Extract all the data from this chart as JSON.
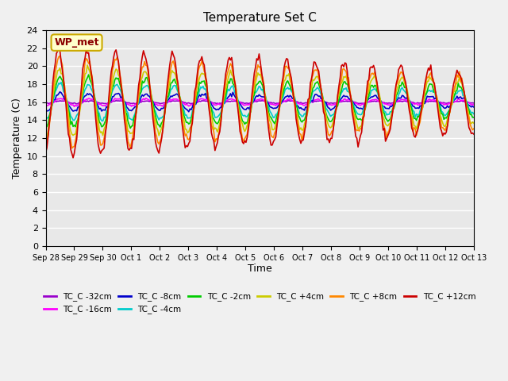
{
  "title": "Temperature Set C",
  "xlabel": "Time",
  "ylabel": "Temperature (C)",
  "ylim": [
    0,
    24
  ],
  "yticks": [
    0,
    2,
    4,
    6,
    8,
    10,
    12,
    14,
    16,
    18,
    20,
    22,
    24
  ],
  "fig_facecolor": "#f0f0f0",
  "plot_bg_color": "#e8e8e8",
  "wp_met_label": "WP_met",
  "series": [
    {
      "label": "TC_C -32cm",
      "color": "#9900cc"
    },
    {
      "label": "TC_C -16cm",
      "color": "#ff00ff"
    },
    {
      "label": "TC_C -8cm",
      "color": "#0000cc"
    },
    {
      "label": "TC_C -4cm",
      "color": "#00cccc"
    },
    {
      "label": "TC_C -2cm",
      "color": "#00cc00"
    },
    {
      "label": "TC_C +4cm",
      "color": "#cccc00"
    },
    {
      "label": "TC_C +8cm",
      "color": "#ff8800"
    },
    {
      "label": "TC_C +12cm",
      "color": "#cc0000"
    }
  ],
  "x_tick_labels": [
    "Sep 28",
    "Sep 29",
    "Sep 30",
    "Oct 1",
    "Oct 2",
    "Oct 3",
    "Oct 4",
    "Oct 5",
    "Oct 6",
    "Oct 7",
    "Oct 8",
    "Oct 9",
    "Oct 10",
    "Oct 11",
    "Oct 12",
    "Oct 13"
  ],
  "n_days": 15,
  "pts_per_day": 24
}
